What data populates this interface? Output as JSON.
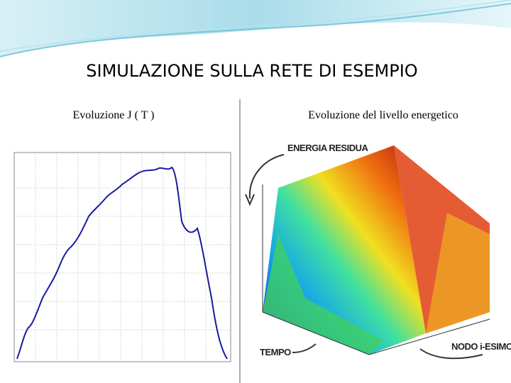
{
  "slide": {
    "title": "SIMULAZIONE  SULLA  RETE  DI  ESEMPIO",
    "left_caption": "Evoluzione  J ( T )",
    "right_caption": "Evoluzione  del  livello  energetico",
    "annotations": {
      "energy": "ENERGIA RESIDUA",
      "time": "TEMPO",
      "node": "NODO i-ESIMO"
    }
  }
}
